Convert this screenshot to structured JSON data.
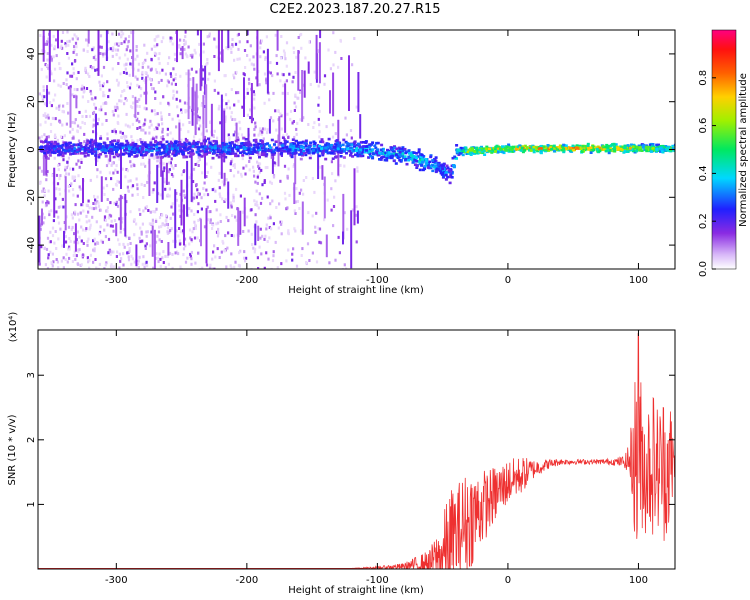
{
  "figure": {
    "title": "C2E2.2023.187.20.27.R15"
  },
  "chart_data": [
    {
      "type": "heatmap",
      "title": "C2E2.2023.187.20.27.R15",
      "xlabel": "Height of straight line (km)",
      "ylabel": "Frequency (Hz)",
      "xlim": [
        -360,
        128
      ],
      "ylim": [
        -50,
        50
      ],
      "x_ticks": [
        -300,
        -200,
        -100,
        0,
        100
      ],
      "x_tick_labels": [
        "-300",
        "-200",
        "-100",
        "0",
        "100"
      ],
      "y_ticks": [
        -40,
        -20,
        0,
        20,
        40
      ],
      "y_tick_labels": [
        "-40",
        "-20",
        "0",
        "20",
        "40"
      ],
      "colorbar": {
        "label": "Normalized spectral amplitude",
        "range": [
          0,
          1
        ],
        "ticks": [
          0.0,
          0.2,
          0.4,
          0.6,
          0.8
        ],
        "tick_labels": [
          "0.0",
          "0.2",
          "0.4",
          "0.6",
          "0.8"
        ],
        "colormap": "rainbow"
      },
      "ridge": {
        "description_points_x": [
          -360,
          -300,
          -200,
          -120,
          -80,
          -60,
          -45,
          -40,
          -30,
          0,
          60,
          95,
          100,
          128
        ],
        "center_freq": [
          1,
          1,
          1,
          1,
          -2,
          -5,
          -10,
          0,
          0,
          1,
          1,
          1,
          1,
          1
        ],
        "amplitude": [
          0.3,
          0.35,
          0.35,
          0.4,
          0.45,
          0.45,
          0.35,
          0.55,
          0.75,
          0.8,
          0.85,
          0.8,
          0.7,
          0.6
        ]
      },
      "noise_region_x": [
        -360,
        -110
      ]
    },
    {
      "type": "line",
      "xlabel": "Height of straight line (km)",
      "ylabel": "SNR (10 * v/v)",
      "scale_label": "(x10⁴)",
      "scale_exponent": 4,
      "xlim": [
        -360,
        128
      ],
      "ylim": [
        0,
        3.7
      ],
      "x_ticks": [
        -300,
        -200,
        -100,
        0,
        100
      ],
      "x_tick_labels": [
        "-300",
        "-200",
        "-100",
        "0",
        "100"
      ],
      "y_ticks": [
        1,
        2,
        3
      ],
      "y_tick_labels": [
        "1",
        "2",
        "3"
      ],
      "series": [
        {
          "color": "#ee3030",
          "x": [
            -360,
            -300,
            -200,
            -120,
            -100,
            -80,
            -60,
            -50,
            -45,
            -40,
            -35,
            -30,
            -25,
            -20,
            -15,
            -10,
            -5,
            0,
            10,
            20,
            30,
            40,
            50,
            60,
            70,
            80,
            90,
            95,
            98,
            100,
            102,
            105,
            110,
            115,
            120,
            125,
            128
          ],
          "y": [
            0.01,
            0.01,
            0.01,
            0.01,
            0.02,
            0.04,
            0.1,
            0.2,
            0.35,
            0.5,
            0.65,
            0.75,
            0.85,
            0.95,
            1.05,
            1.15,
            1.25,
            1.35,
            1.45,
            1.55,
            1.62,
            1.66,
            1.66,
            1.66,
            1.66,
            1.66,
            1.66,
            1.7,
            1.75,
            1.0,
            1.8,
            1.5,
            1.7,
            1.55,
            1.6,
            1.62,
            1.6
          ],
          "noise_amplitude": [
            0,
            0,
            0,
            0,
            0.02,
            0.05,
            0.2,
            0.6,
            0.9,
            0.8,
            0.8,
            0.8,
            0.7,
            0.6,
            0.5,
            0.45,
            0.4,
            0.35,
            0.3,
            0.15,
            0.08,
            0.05,
            0.04,
            0.04,
            0.04,
            0.05,
            0.1,
            0.6,
            1.5,
            2.0,
            1.2,
            1.0,
            1.2,
            1.0,
            1.2,
            1.0,
            0.2
          ],
          "peak_value": 3.65,
          "peak_x": 100
        }
      ]
    }
  ]
}
